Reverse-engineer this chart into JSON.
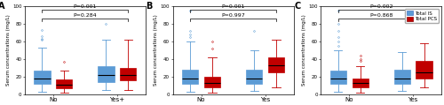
{
  "panels": [
    {
      "label": "A",
      "xlabel_no": "No",
      "xlabel_yes": "Yes+",
      "ylabel": "Serum concentrations (mg/L)",
      "pval_inner": "P=0.284",
      "pval_outer": "P=0.001",
      "boxes": {
        "no_is": {
          "med": 18,
          "q1": 12,
          "q3": 27,
          "whislo": 3,
          "whishi": 53,
          "fliers": [
            62,
            63,
            66,
            73
          ]
        },
        "no_pcs": {
          "med": 11,
          "q1": 7,
          "q3": 17,
          "whislo": 2,
          "whishi": 27,
          "fliers": [
            37
          ]
        },
        "yes_is": {
          "med": 22,
          "q1": 14,
          "q3": 32,
          "whislo": 5,
          "whishi": 62,
          "fliers": [
            80
          ]
        },
        "yes_pcs": {
          "med": 22,
          "q1": 16,
          "q3": 30,
          "whislo": 5,
          "whishi": 62,
          "fliers": []
        }
      },
      "ylim": [
        0,
        100
      ]
    },
    {
      "label": "B",
      "xlabel_no": "No",
      "xlabel_yes": "Yes",
      "ylabel": "Serum concentrations (mg/L)",
      "pval_inner": "P=0.997",
      "pval_outer": "P=0.001",
      "boxes": {
        "no_is": {
          "med": 18,
          "q1": 12,
          "q3": 28,
          "whislo": 3,
          "whishi": 60,
          "fliers": [
            65,
            68,
            72,
            95
          ]
        },
        "no_pcs": {
          "med": 13,
          "q1": 8,
          "q3": 20,
          "whislo": 2,
          "whishi": 42,
          "fliers": [
            52,
            60
          ]
        },
        "yes_is": {
          "med": 18,
          "q1": 12,
          "q3": 28,
          "whislo": 4,
          "whishi": 50,
          "fliers": [
            72
          ]
        },
        "yes_pcs": {
          "med": 33,
          "q1": 25,
          "q3": 42,
          "whislo": 8,
          "whishi": 62,
          "fliers": []
        }
      },
      "ylim": [
        0,
        100
      ]
    },
    {
      "label": "C",
      "xlabel_no": "No",
      "xlabel_yes": "Yes",
      "ylabel": "Serum concentrations (mg/L)",
      "pval_inner": "P=0.868",
      "pval_outer": "P=0.002",
      "boxes": {
        "no_is": {
          "med": 18,
          "q1": 12,
          "q3": 27,
          "whislo": 3,
          "whishi": 50,
          "fliers": [
            55,
            60,
            65,
            72,
            80,
            95
          ]
        },
        "no_pcs": {
          "med": 13,
          "q1": 8,
          "q3": 18,
          "whislo": 2,
          "whishi": 32,
          "fliers": [
            38,
            40,
            44
          ]
        },
        "yes_is": {
          "med": 18,
          "q1": 12,
          "q3": 28,
          "whislo": 4,
          "whishi": 48,
          "fliers": []
        },
        "yes_pcs": {
          "med": 25,
          "q1": 18,
          "q3": 38,
          "whislo": 8,
          "whishi": 58,
          "fliers": []
        }
      },
      "ylim": [
        0,
        100
      ]
    }
  ],
  "color_is": "#5B9BD5",
  "color_pcs": "#C00000",
  "legend_is": "Total IS",
  "legend_pcs": "Total PCS",
  "background": "#ffffff",
  "box_width": 0.28,
  "flier_marker": "o",
  "flier_size": 1.2
}
